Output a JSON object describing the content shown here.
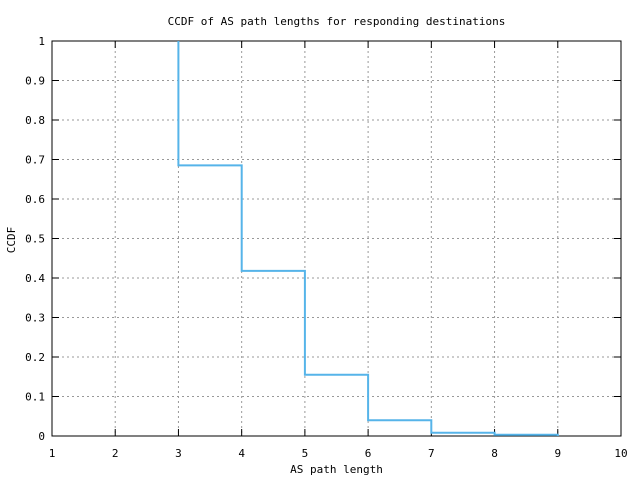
{
  "chart_data": {
    "type": "line",
    "subtype": "step-ccdf",
    "title": "CCDF of AS path lengths for responding destinations",
    "xlabel": "AS path length",
    "ylabel": "CCDF",
    "xlim": [
      1,
      10
    ],
    "ylim": [
      0,
      1
    ],
    "xticks": [
      1,
      2,
      3,
      4,
      5,
      6,
      7,
      8,
      9,
      10
    ],
    "x_tick_labels": [
      "1",
      "2",
      "3",
      "4",
      "5",
      "6",
      "7",
      "8",
      "9",
      "10"
    ],
    "yticks": [
      0,
      0.1,
      0.2,
      0.3,
      0.4,
      0.5,
      0.6,
      0.7,
      0.8,
      0.9,
      1
    ],
    "y_tick_labels": [
      "0",
      "0.1",
      "0.2",
      "0.3",
      "0.4",
      "0.5",
      "0.6",
      "0.7",
      "0.8",
      "0.9",
      "1"
    ],
    "grid": true,
    "legend": "none",
    "series": [
      {
        "name": "ccdf-of-as-path-length",
        "step_points": [
          [
            3,
            1.0
          ],
          [
            3,
            0.685
          ],
          [
            4,
            0.685
          ],
          [
            4,
            0.418
          ],
          [
            5,
            0.418
          ],
          [
            5,
            0.155
          ],
          [
            6,
            0.155
          ],
          [
            6,
            0.04
          ],
          [
            7,
            0.04
          ],
          [
            7,
            0.008
          ],
          [
            8,
            0.008
          ],
          [
            8,
            0.003
          ],
          [
            9,
            0.003
          ],
          [
            9,
            0.0
          ]
        ]
      }
    ],
    "colors": {
      "line": "#56b4e9",
      "grid": "#999999",
      "axis": "#000000",
      "background": "#ffffff"
    }
  }
}
